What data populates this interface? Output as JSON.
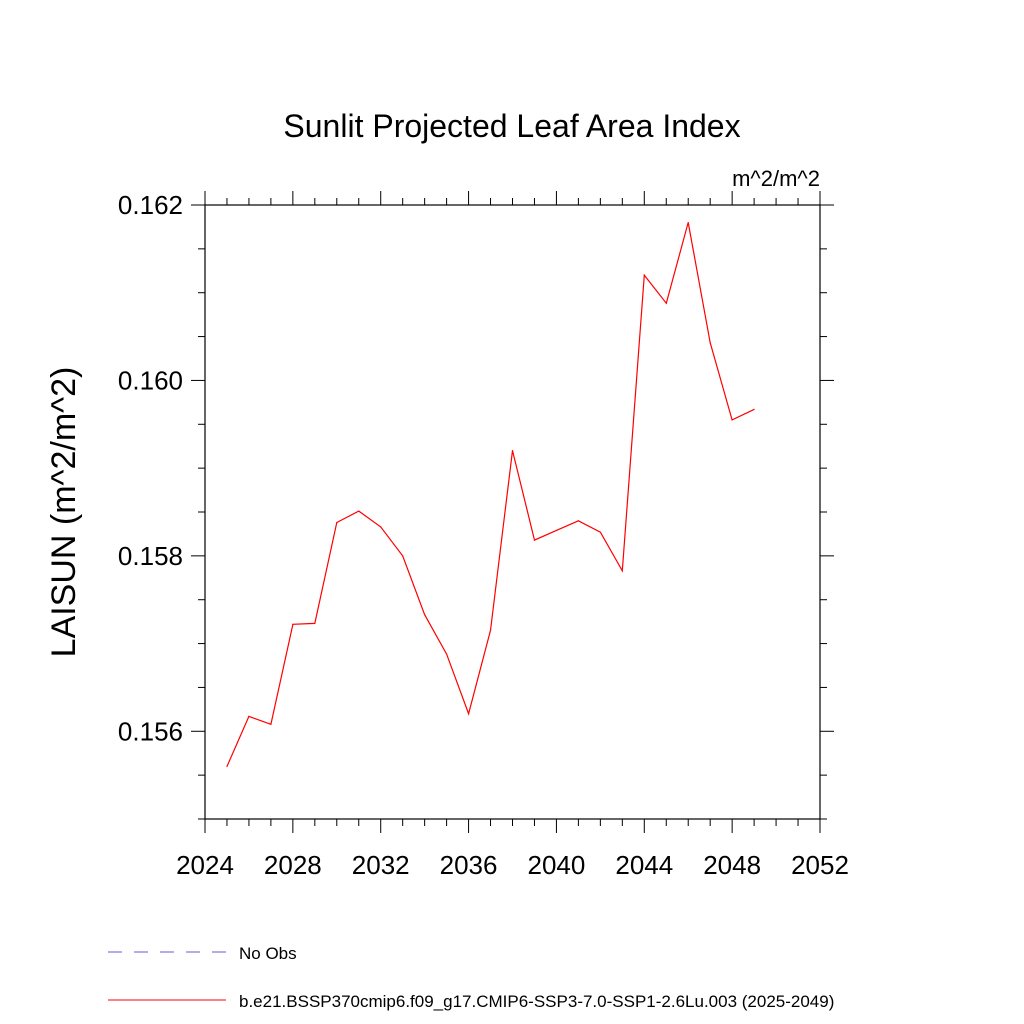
{
  "chart_data": {
    "type": "line",
    "title": "Sunlit Projected Leaf Area Index",
    "units": "m^2/m^2",
    "ylabel": "LAISUN  (m^2/m^2)",
    "xlabel": "",
    "xlim": [
      2024,
      2052
    ],
    "ylim": [
      0.155,
      0.162
    ],
    "x_ticks": [
      "2024",
      "2028",
      "2032",
      "2036",
      "2040",
      "2044",
      "2048",
      "2052"
    ],
    "y_ticks": [
      "0.156",
      "0.158",
      "0.160",
      "0.162"
    ],
    "grid": false,
    "legend_position": "bottom-left",
    "series": [
      {
        "name": "b.e21.BSSP370cmip6.f09_g17.CMIP6-SSP3-7.0-SSP1-2.6Lu.003 (2025-2049)",
        "color": "#ff0000",
        "style": "solid",
        "x": [
          2025,
          2026,
          2027,
          2028,
          2029,
          2030,
          2031,
          2032,
          2033,
          2034,
          2035,
          2036,
          2037,
          2038,
          2039,
          2040,
          2041,
          2042,
          2043,
          2044,
          2045,
          2046,
          2047,
          2048,
          2049
        ],
        "y": [
          0.1556,
          0.15617,
          0.15608,
          0.15722,
          0.15723,
          0.15838,
          0.15851,
          0.15833,
          0.158,
          0.15733,
          0.15688,
          0.1562,
          0.15715,
          0.1592,
          0.15818,
          0.15829,
          0.1584,
          0.15827,
          0.15783,
          0.1612,
          0.16088,
          0.1618,
          0.16043,
          0.15955,
          0.15967
        ]
      }
    ],
    "legend": [
      {
        "label": "No Obs",
        "color": "#6a5acd",
        "style": "dashed"
      },
      {
        "label": "b.e21.BSSP370cmip6.f09_g17.CMIP6-SSP3-7.0-SSP1-2.6Lu.003 (2025-2049)",
        "color": "#ff0000",
        "style": "solid"
      }
    ]
  }
}
